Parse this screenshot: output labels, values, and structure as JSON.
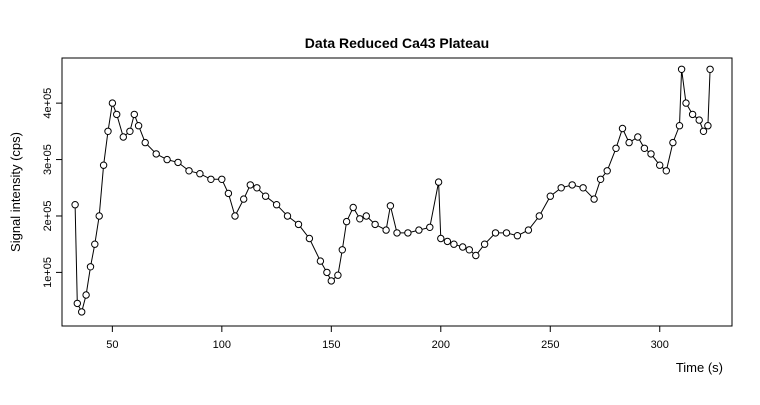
{
  "chart_data": {
    "type": "scatter",
    "title": "Data Reduced Ca43 Plateau",
    "xlabel": "Time (s)",
    "ylabel": "Signal intensity (cps)",
    "xlim": [
      27,
      333
    ],
    "ylim": [
      5000,
      480000
    ],
    "xticks": [
      50,
      100,
      150,
      200,
      250,
      300
    ],
    "xtick_labels": [
      "50",
      "100",
      "150",
      "200",
      "250",
      "300"
    ],
    "yticks": [
      100000,
      200000,
      300000,
      400000
    ],
    "ytick_labels": [
      "1e+05",
      "2e+05",
      "3e+05",
      "4e+05"
    ],
    "grid": false,
    "legend": "none",
    "marker": "open-circle",
    "connect_points": true,
    "colors": {
      "points": "#000000",
      "frame": "#000000",
      "background": "#ffffff"
    },
    "series": [
      {
        "x": [
          33,
          34,
          36,
          38,
          40,
          42,
          44,
          46,
          48,
          50,
          52,
          55,
          58,
          60,
          62,
          65,
          70,
          75,
          80,
          85,
          90,
          95,
          100,
          103,
          106,
          110,
          113,
          116,
          120,
          125,
          130,
          135,
          140,
          145,
          148,
          150,
          153,
          155,
          157,
          160,
          163,
          166,
          170,
          175,
          177,
          180,
          185,
          190,
          195,
          199,
          200,
          203,
          206,
          210,
          213,
          216,
          220,
          225,
          230,
          235,
          240,
          245,
          250,
          255,
          260,
          265,
          270,
          273,
          276,
          280,
          283,
          286,
          290,
          293,
          296,
          300,
          303,
          306,
          309,
          310,
          312,
          315,
          318,
          320,
          322,
          323
        ],
        "y": [
          220000,
          45000,
          30000,
          60000,
          110000,
          150000,
          200000,
          290000,
          350000,
          400000,
          380000,
          340000,
          350000,
          380000,
          360000,
          330000,
          310000,
          300000,
          295000,
          280000,
          275000,
          265000,
          265000,
          240000,
          200000,
          230000,
          255000,
          250000,
          235000,
          220000,
          200000,
          185000,
          160000,
          120000,
          100000,
          85000,
          95000,
          140000,
          190000,
          215000,
          195000,
          200000,
          185000,
          175000,
          218000,
          170000,
          170000,
          175000,
          180000,
          260000,
          160000,
          155000,
          150000,
          145000,
          140000,
          130000,
          150000,
          170000,
          170000,
          165000,
          175000,
          200000,
          235000,
          250000,
          255000,
          250000,
          230000,
          265000,
          280000,
          320000,
          355000,
          330000,
          340000,
          320000,
          310000,
          290000,
          280000,
          330000,
          360000,
          460000,
          400000,
          380000,
          370000,
          350000,
          360000,
          460000
        ]
      }
    ]
  }
}
